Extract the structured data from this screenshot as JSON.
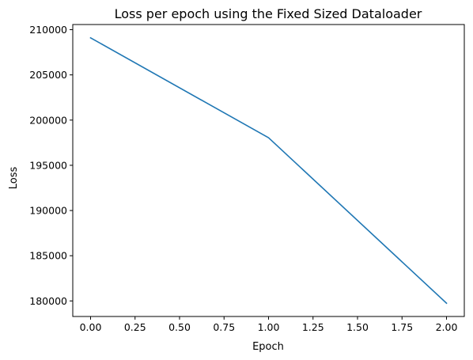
{
  "chart_data": {
    "type": "line",
    "title": "Loss per epoch using the Fixed Sized Dataloader",
    "xlabel": "Epoch",
    "ylabel": "Loss",
    "x": [
      0,
      1,
      2
    ],
    "series": [
      {
        "values": [
          209100,
          198050,
          179750
        ],
        "color": "#1f77b4"
      }
    ],
    "xlim": [
      -0.1,
      2.1
    ],
    "ylim": [
      178280,
      210570
    ],
    "xticks": [
      0.0,
      0.25,
      0.5,
      0.75,
      1.0,
      1.25,
      1.5,
      1.75,
      2.0
    ],
    "xtick_labels": [
      "0.00",
      "0.25",
      "0.50",
      "0.75",
      "1.00",
      "1.25",
      "1.50",
      "1.75",
      "2.00"
    ],
    "yticks": [
      180000,
      185000,
      190000,
      195000,
      200000,
      205000,
      210000
    ],
    "ytick_labels": [
      "180000",
      "185000",
      "190000",
      "195000",
      "200000",
      "205000",
      "210000"
    ],
    "grid": false,
    "legend": "none"
  }
}
